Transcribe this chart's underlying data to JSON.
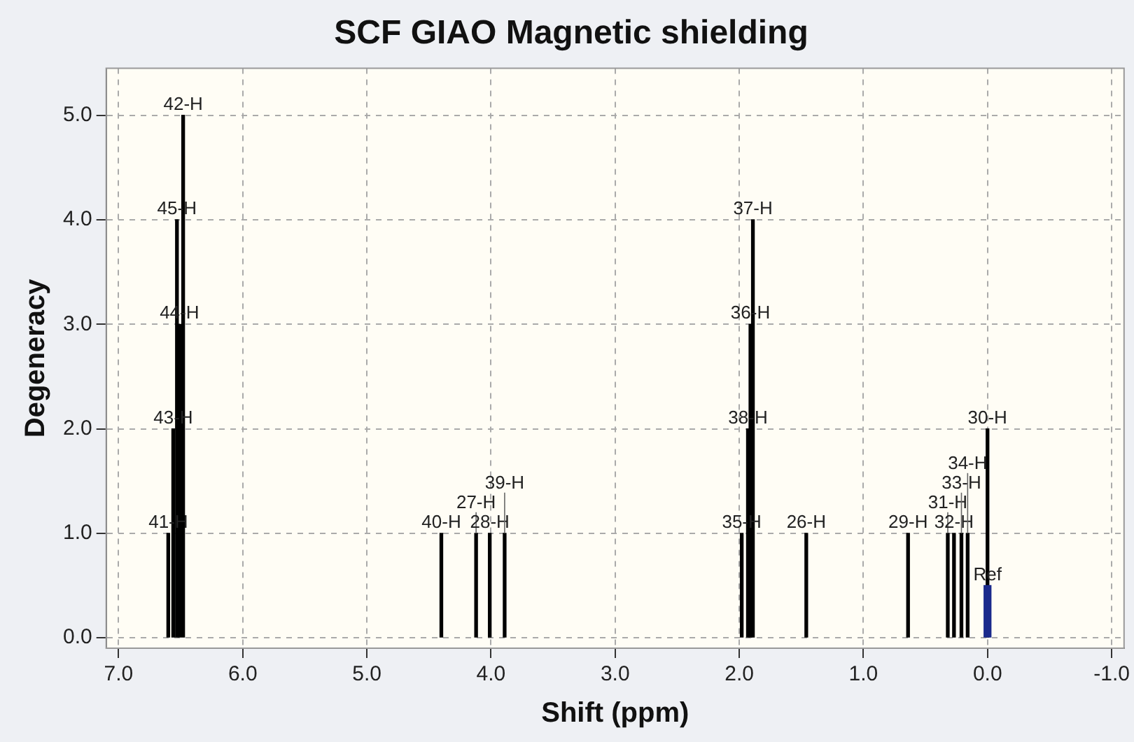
{
  "chart_data": {
    "type": "bar",
    "title": "SCF GIAO Magnetic shielding",
    "xlabel": "Shift (ppm)",
    "ylabel": "Degeneracy",
    "series": [
      {
        "color": "#000000",
        "x": [
          6.6,
          6.56,
          6.53,
          6.51,
          6.48,
          4.4,
          4.12,
          4.01,
          3.89,
          1.98,
          1.93,
          1.91,
          1.89,
          1.46,
          0.64,
          0.32,
          0.27,
          0.21,
          0.16,
          0.0
        ],
        "values": [
          1,
          2,
          4,
          3,
          5,
          1,
          1,
          1,
          1,
          1,
          2,
          3,
          4,
          1,
          1,
          1,
          1,
          1,
          1,
          2
        ]
      },
      {
        "color": "#1a2a8c",
        "x": [
          0.0
        ],
        "values": [
          0.5
        ]
      }
    ],
    "annotations": [
      {
        "text": "41-H",
        "x": 6.6,
        "y": 1
      },
      {
        "text": "43-H",
        "x": 6.56,
        "y": 2
      },
      {
        "text": "45-H",
        "x": 6.53,
        "y": 4
      },
      {
        "text": "44-H",
        "x": 6.51,
        "y": 3
      },
      {
        "text": "42-H",
        "x": 6.48,
        "y": 5
      },
      {
        "text": "40-H",
        "x": 4.4,
        "y": 1
      },
      {
        "text": "27-H",
        "x": 4.12,
        "y": 1
      },
      {
        "text": "28-H",
        "x": 4.01,
        "y": 1
      },
      {
        "text": "39-H",
        "x": 3.89,
        "y": 1
      },
      {
        "text": "35-H",
        "x": 1.98,
        "y": 1
      },
      {
        "text": "38-H",
        "x": 1.93,
        "y": 2
      },
      {
        "text": "36-H",
        "x": 1.91,
        "y": 3
      },
      {
        "text": "37-H",
        "x": 1.89,
        "y": 4
      },
      {
        "text": "26-H",
        "x": 1.46,
        "y": 1
      },
      {
        "text": "29-H",
        "x": 0.64,
        "y": 1
      },
      {
        "text": "31-H",
        "x": 0.32,
        "y": 1
      },
      {
        "text": "32-H",
        "x": 0.27,
        "y": 1
      },
      {
        "text": "33-H",
        "x": 0.21,
        "y": 1
      },
      {
        "text": "34-H",
        "x": 0.16,
        "y": 1
      },
      {
        "text": "30-H",
        "x": 0.0,
        "y": 2
      },
      {
        "text": "Ref",
        "x": 0.0,
        "y": 0.5
      }
    ],
    "xlim": [
      7.1,
      -1.1
    ],
    "xticks": [
      {
        "value": 7,
        "label": "7.0"
      },
      {
        "value": 6,
        "label": "6.0"
      },
      {
        "value": 5,
        "label": "5.0"
      },
      {
        "value": 4,
        "label": "4.0"
      },
      {
        "value": 3,
        "label": "3.0"
      },
      {
        "value": 2,
        "label": "2.0"
      },
      {
        "value": 1,
        "label": "1.0"
      },
      {
        "value": 0,
        "label": "0.0"
      },
      {
        "value": -1,
        "label": "-1.0"
      }
    ],
    "ylim": [
      -0.1,
      5.45
    ],
    "yticks": [
      {
        "value": 0,
        "label": "0.0"
      },
      {
        "value": 1,
        "label": "1.0"
      },
      {
        "value": 2,
        "label": "2.0"
      },
      {
        "value": 3,
        "label": "3.0"
      },
      {
        "value": 4,
        "label": "4.0"
      },
      {
        "value": 5,
        "label": "5.0"
      }
    ],
    "grid": true,
    "legend": false
  }
}
